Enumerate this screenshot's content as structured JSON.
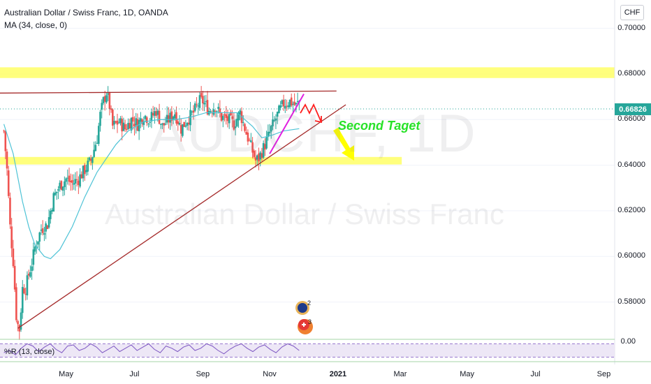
{
  "header": {
    "symbol_line": "Australian Dollar / Swiss Franc, 1D, OANDA",
    "ma_line": "MA (34, close, 0)",
    "currency_button": "CHF"
  },
  "watermark": {
    "ticker": "AUDCHF, 1D",
    "name": "Australian Dollar / Swiss Franc"
  },
  "current_price": {
    "label": "0.66826",
    "value": 0.66826,
    "color": "#26a69a"
  },
  "annotation": {
    "text": "Second Taget",
    "color": "#28e228"
  },
  "indicator": {
    "label": "%R (13, close)",
    "value_label": "0.00"
  },
  "colors": {
    "up_candle": "#26a69a",
    "down_candle": "#ef5350",
    "ma_line": "#4ec3d6",
    "zone_fill": "#ffff66",
    "trend_line": "#a52a2a",
    "magenta_line": "#e020e0",
    "arrow_red": "#ff1f1f",
    "arrow_yellow": "#ffff00",
    "indicator_line": "#7e57c2",
    "indicator_band": "#ede7f6"
  },
  "chart_data": {
    "type": "candlestick",
    "title": "Australian Dollar / Swiss Franc, 1D, OANDA",
    "ylim": [
      0.5655,
      0.7124
    ],
    "y_ticks": [
      {
        "value": 0.7,
        "label": "0.70000"
      },
      {
        "value": 0.68,
        "label": "0.68000"
      },
      {
        "value": 0.66,
        "label": "0.66000"
      },
      {
        "value": 0.64,
        "label": "0.64000"
      },
      {
        "value": 0.62,
        "label": "0.62000"
      },
      {
        "value": 0.6,
        "label": "0.60000"
      },
      {
        "value": 0.58,
        "label": "0.58000"
      }
    ],
    "x_ticks": [
      {
        "index": 40,
        "label": "May",
        "bold": false
      },
      {
        "index": 84,
        "label": "Jul",
        "bold": false
      },
      {
        "index": 128,
        "label": "Sep",
        "bold": false
      },
      {
        "index": 171,
        "label": "Nov",
        "bold": false
      },
      {
        "index": 215,
        "label": "2021",
        "bold": true
      },
      {
        "index": 255,
        "label": "Mar",
        "bold": false
      },
      {
        "index": 298,
        "label": "May",
        "bold": false
      },
      {
        "index": 342,
        "label": "Jul",
        "bold": false
      },
      {
        "index": 386,
        "label": "Sep",
        "bold": false
      }
    ],
    "x_index_range": [
      -2.5,
      393
    ],
    "price_anchors": [
      [
        0,
        0.655
      ],
      [
        2,
        0.638
      ],
      [
        4,
        0.613
      ],
      [
        6,
        0.598
      ],
      [
        7,
        0.586
      ],
      [
        8,
        0.574
      ],
      [
        9,
        0.57
      ],
      [
        10,
        0.568
      ],
      [
        12,
        0.586
      ],
      [
        14,
        0.586
      ],
      [
        16,
        0.592
      ],
      [
        18,
        0.597
      ],
      [
        20,
        0.604
      ],
      [
        24,
        0.612
      ],
      [
        28,
        0.614
      ],
      [
        32,
        0.626
      ],
      [
        36,
        0.631
      ],
      [
        40,
        0.634
      ],
      [
        44,
        0.632
      ],
      [
        48,
        0.634
      ],
      [
        52,
        0.638
      ],
      [
        56,
        0.642
      ],
      [
        60,
        0.652
      ],
      [
        62,
        0.662
      ],
      [
        64,
        0.668
      ],
      [
        66,
        0.672
      ],
      [
        68,
        0.666
      ],
      [
        70,
        0.657
      ],
      [
        74,
        0.659
      ],
      [
        78,
        0.656
      ],
      [
        82,
        0.66
      ],
      [
        86,
        0.658
      ],
      [
        90,
        0.662
      ],
      [
        94,
        0.66
      ],
      [
        98,
        0.664
      ],
      [
        102,
        0.657
      ],
      [
        106,
        0.66
      ],
      [
        110,
        0.663
      ],
      [
        114,
        0.656
      ],
      [
        118,
        0.66
      ],
      [
        122,
        0.663
      ],
      [
        126,
        0.668
      ],
      [
        128,
        0.668
      ],
      [
        132,
        0.664
      ],
      [
        136,
        0.666
      ],
      [
        140,
        0.661
      ],
      [
        144,
        0.66
      ],
      [
        148,
        0.658
      ],
      [
        152,
        0.663
      ],
      [
        156,
        0.654
      ],
      [
        160,
        0.646
      ],
      [
        162,
        0.642
      ],
      [
        164,
        0.643
      ],
      [
        168,
        0.649
      ],
      [
        172,
        0.656
      ],
      [
        176,
        0.662
      ],
      [
        180,
        0.667
      ],
      [
        184,
        0.668
      ],
      [
        188,
        0.666
      ],
      [
        190,
        0.668
      ]
    ],
    "ma_anchors": [
      [
        0,
        0.658
      ],
      [
        6,
        0.645
      ],
      [
        12,
        0.624
      ],
      [
        16,
        0.613
      ],
      [
        20,
        0.605
      ],
      [
        26,
        0.6
      ],
      [
        30,
        0.599
      ],
      [
        36,
        0.603
      ],
      [
        44,
        0.613
      ],
      [
        52,
        0.626
      ],
      [
        60,
        0.637
      ],
      [
        66,
        0.643
      ],
      [
        72,
        0.649
      ],
      [
        80,
        0.655
      ],
      [
        90,
        0.659
      ],
      [
        100,
        0.66
      ],
      [
        110,
        0.66
      ],
      [
        120,
        0.661
      ],
      [
        130,
        0.663
      ],
      [
        140,
        0.663
      ],
      [
        150,
        0.663
      ],
      [
        160,
        0.657
      ],
      [
        166,
        0.652
      ],
      [
        172,
        0.653
      ],
      [
        180,
        0.655
      ],
      [
        190,
        0.656
      ]
    ],
    "zones": [
      {
        "from": 0.6782,
        "to": 0.6829,
        "x_start": -2.5,
        "x_end": 393
      },
      {
        "from": 0.6403,
        "to": 0.6436,
        "x_start": -2.5,
        "x_end": 256
      }
    ],
    "lines": [
      {
        "kind": "resistance",
        "from": [
          -2.5,
          0.6716
        ],
        "to": [
          214,
          0.6725
        ]
      },
      {
        "kind": "trend",
        "from": [
          9,
          0.5685
        ],
        "to": [
          220,
          0.6665
        ]
      },
      {
        "kind": "magenta",
        "from": [
          171,
          0.645
        ],
        "to": [
          193,
          0.6712
        ]
      }
    ],
    "williams_r": {
      "label": "%R (13, close)",
      "series": [
        -60,
        -50,
        -70,
        -40,
        -20,
        -30,
        -55,
        -35,
        -20,
        -45,
        -60,
        -30,
        -25,
        -50,
        -40,
        -20,
        -35,
        -60,
        -45,
        -30,
        -55,
        -40,
        -25,
        -50,
        -35,
        -20,
        -45,
        -60,
        -30,
        -40,
        -55,
        -35,
        -25,
        -50,
        -40,
        -20,
        -30,
        -50,
        -65,
        -45,
        -30,
        -20,
        -40,
        -55,
        -35,
        -25,
        -45,
        -60,
        -35,
        -20,
        -30,
        -50
      ]
    }
  }
}
